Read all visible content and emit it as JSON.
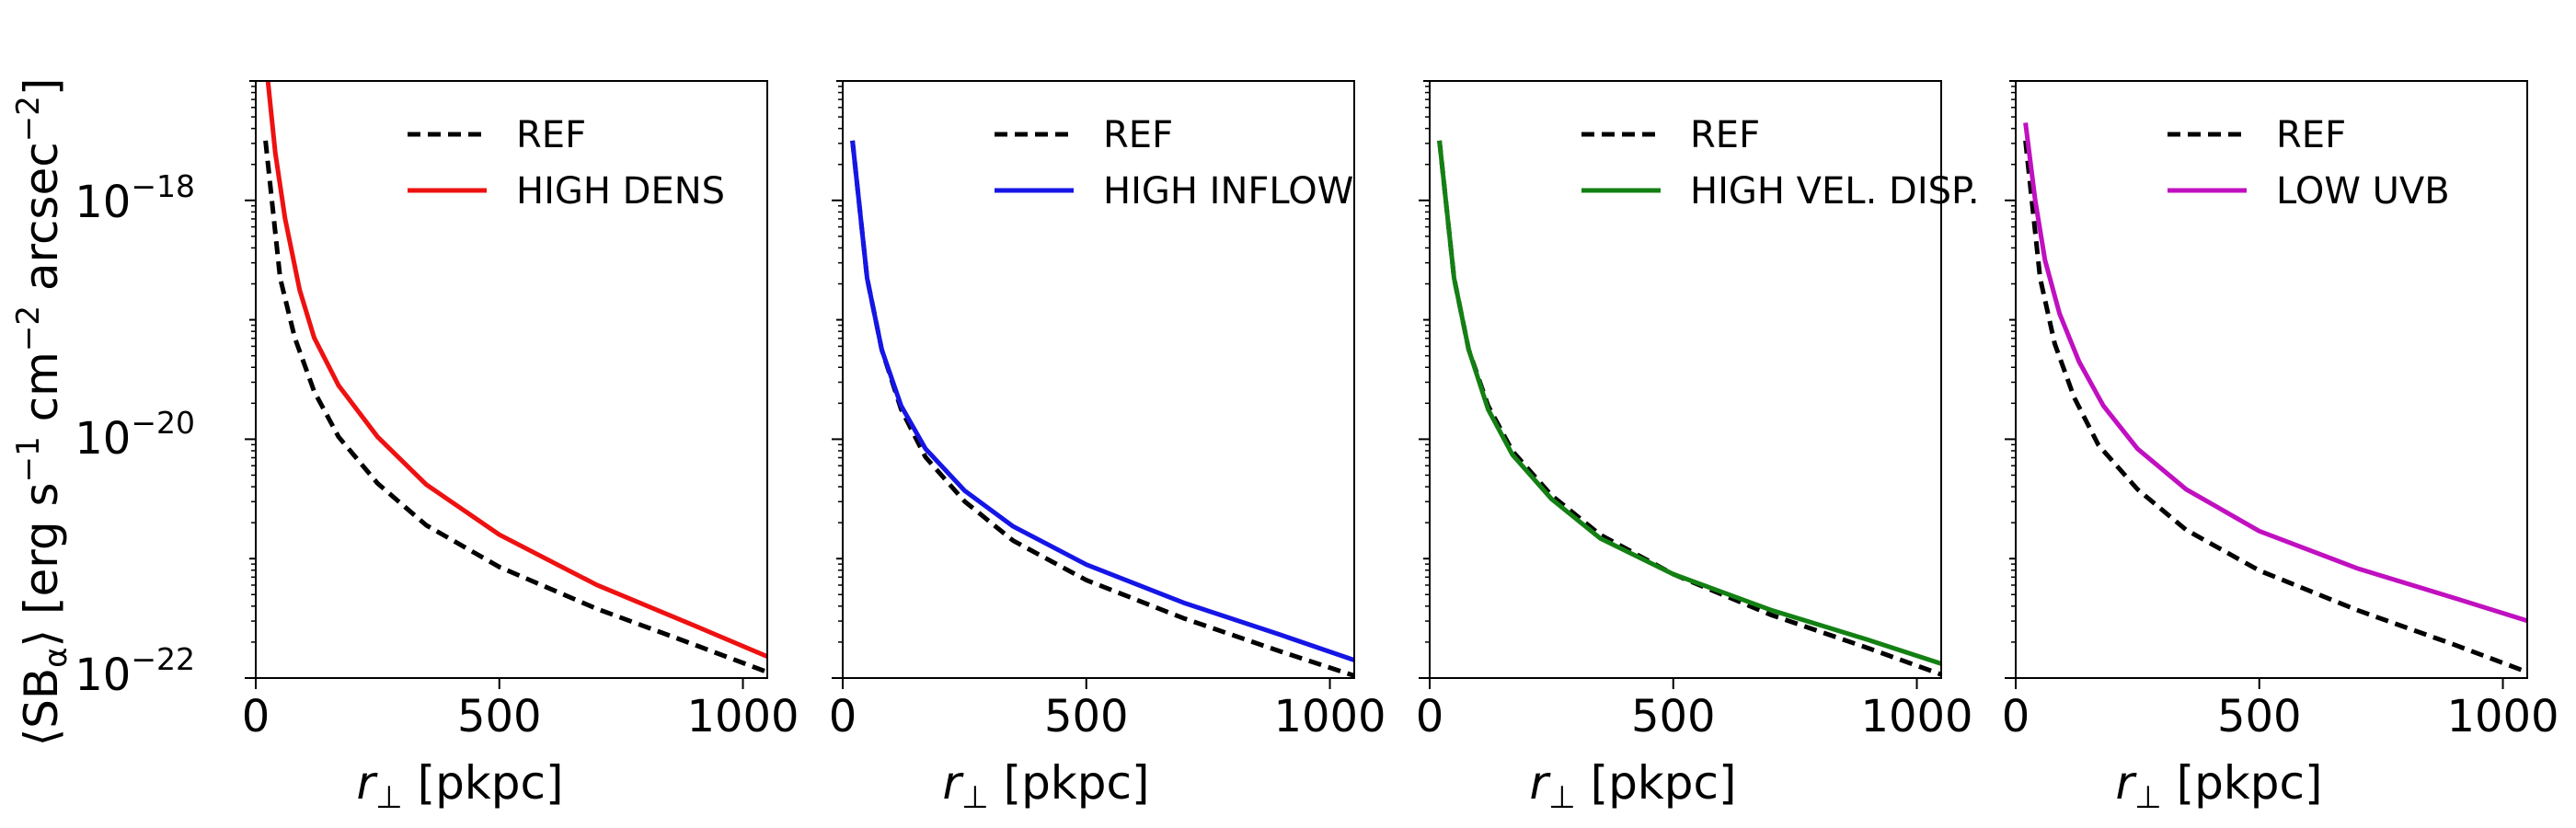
{
  "figure": {
    "ylabel": "⟨SB",
    "ylabel_sub": "α",
    "ylabel_rest": "⟩ [erg s",
    "ylabel_sup1": "−1",
    "ylabel_mid": " cm",
    "ylabel_sup2": "−2",
    "ylabel_mid2": " arcsec",
    "ylabel_sup3": "−2",
    "ylabel_end": "]",
    "xlabel_var": "r",
    "xlabel_sub": "⊥",
    "xlabel_unit": " [pkpc]",
    "ytick_base": "10",
    "ytick_exps": [
      "−18",
      "−20",
      "−22"
    ]
  },
  "chart_data": [
    {
      "type": "line",
      "xlim": [
        0,
        1050
      ],
      "ylim_log10": [
        -22,
        -17
      ],
      "xticks": [
        0,
        500,
        1000
      ],
      "xtick_labels": [
        "0",
        "500",
        "1000"
      ],
      "yscale": "log",
      "series": [
        {
          "name": "REF",
          "style": "dashed",
          "color": "#000000",
          "x": [
            20,
            50,
            80,
            120,
            170,
            250,
            350,
            500,
            700,
            900,
            1050
          ],
          "y": [
            -17.5,
            -18.65,
            -19.15,
            -19.6,
            -19.98,
            -20.37,
            -20.72,
            -21.07,
            -21.42,
            -21.72,
            -21.95
          ]
        },
        {
          "name": "HIGH DENS",
          "style": "solid",
          "color": "#ee1111",
          "x": [
            25,
            40,
            60,
            90,
            120,
            170,
            250,
            350,
            500,
            700,
            900,
            1050
          ],
          "y": [
            -17.0,
            -17.6,
            -18.15,
            -18.75,
            -19.15,
            -19.55,
            -19.98,
            -20.38,
            -20.8,
            -21.22,
            -21.56,
            -21.82
          ]
        }
      ]
    },
    {
      "type": "line",
      "xlim": [
        0,
        1050
      ],
      "ylim_log10": [
        -22,
        -17
      ],
      "xticks": [
        0,
        500,
        1000
      ],
      "xtick_labels": [
        "0",
        "500",
        "1000"
      ],
      "yscale": "log",
      "series": [
        {
          "name": "REF",
          "style": "dashed",
          "color": "#000000",
          "x": [
            20,
            50,
            80,
            120,
            170,
            250,
            350,
            500,
            700,
            900,
            1050
          ],
          "y": [
            -17.5,
            -18.65,
            -19.25,
            -19.75,
            -20.15,
            -20.52,
            -20.85,
            -21.18,
            -21.5,
            -21.78,
            -21.98
          ]
        },
        {
          "name": "HIGH INFLOW",
          "style": "solid",
          "color": "#1515e6",
          "x": [
            20,
            50,
            80,
            120,
            170,
            250,
            350,
            500,
            700,
            900,
            1050
          ],
          "y": [
            -17.5,
            -18.65,
            -19.25,
            -19.72,
            -20.08,
            -20.43,
            -20.73,
            -21.05,
            -21.37,
            -21.64,
            -21.85
          ]
        }
      ]
    },
    {
      "type": "line",
      "xlim": [
        0,
        1050
      ],
      "ylim_log10": [
        -22,
        -17
      ],
      "xticks": [
        0,
        500,
        1000
      ],
      "xtick_labels": [
        "0",
        "500",
        "1000"
      ],
      "yscale": "log",
      "series": [
        {
          "name": "REF",
          "style": "dashed",
          "color": "#000000",
          "x": [
            20,
            50,
            80,
            120,
            170,
            250,
            350,
            500,
            700,
            900,
            1050
          ],
          "y": [
            -17.5,
            -18.65,
            -19.25,
            -19.72,
            -20.1,
            -20.47,
            -20.8,
            -21.13,
            -21.47,
            -21.75,
            -21.97
          ]
        },
        {
          "name": "HIGH VEL. DISP.",
          "style": "solid",
          "color": "#138013",
          "x": [
            20,
            50,
            80,
            120,
            170,
            250,
            350,
            500,
            700,
            900,
            1050
          ],
          "y": [
            -17.5,
            -18.65,
            -19.25,
            -19.75,
            -20.13,
            -20.5,
            -20.83,
            -21.13,
            -21.43,
            -21.68,
            -21.88
          ]
        }
      ]
    },
    {
      "type": "line",
      "xlim": [
        0,
        1050
      ],
      "ylim_log10": [
        -22,
        -17
      ],
      "xticks": [
        0,
        500,
        1000
      ],
      "xtick_labels": [
        "0",
        "500",
        "1000"
      ],
      "yscale": "log",
      "series": [
        {
          "name": "REF",
          "style": "dashed",
          "color": "#000000",
          "x": [
            20,
            50,
            80,
            120,
            170,
            250,
            350,
            500,
            700,
            900,
            1050
          ],
          "y": [
            -17.5,
            -18.65,
            -19.2,
            -19.65,
            -20.05,
            -20.42,
            -20.76,
            -21.1,
            -21.43,
            -21.72,
            -21.95
          ]
        },
        {
          "name": "LOW UVB",
          "style": "solid",
          "color": "#c010c0",
          "x": [
            20,
            40,
            60,
            90,
            130,
            180,
            250,
            350,
            500,
            700,
            900,
            1050
          ],
          "y": [
            -17.35,
            -18.0,
            -18.5,
            -18.95,
            -19.35,
            -19.72,
            -20.08,
            -20.42,
            -20.77,
            -21.08,
            -21.33,
            -21.52
          ]
        }
      ]
    }
  ]
}
